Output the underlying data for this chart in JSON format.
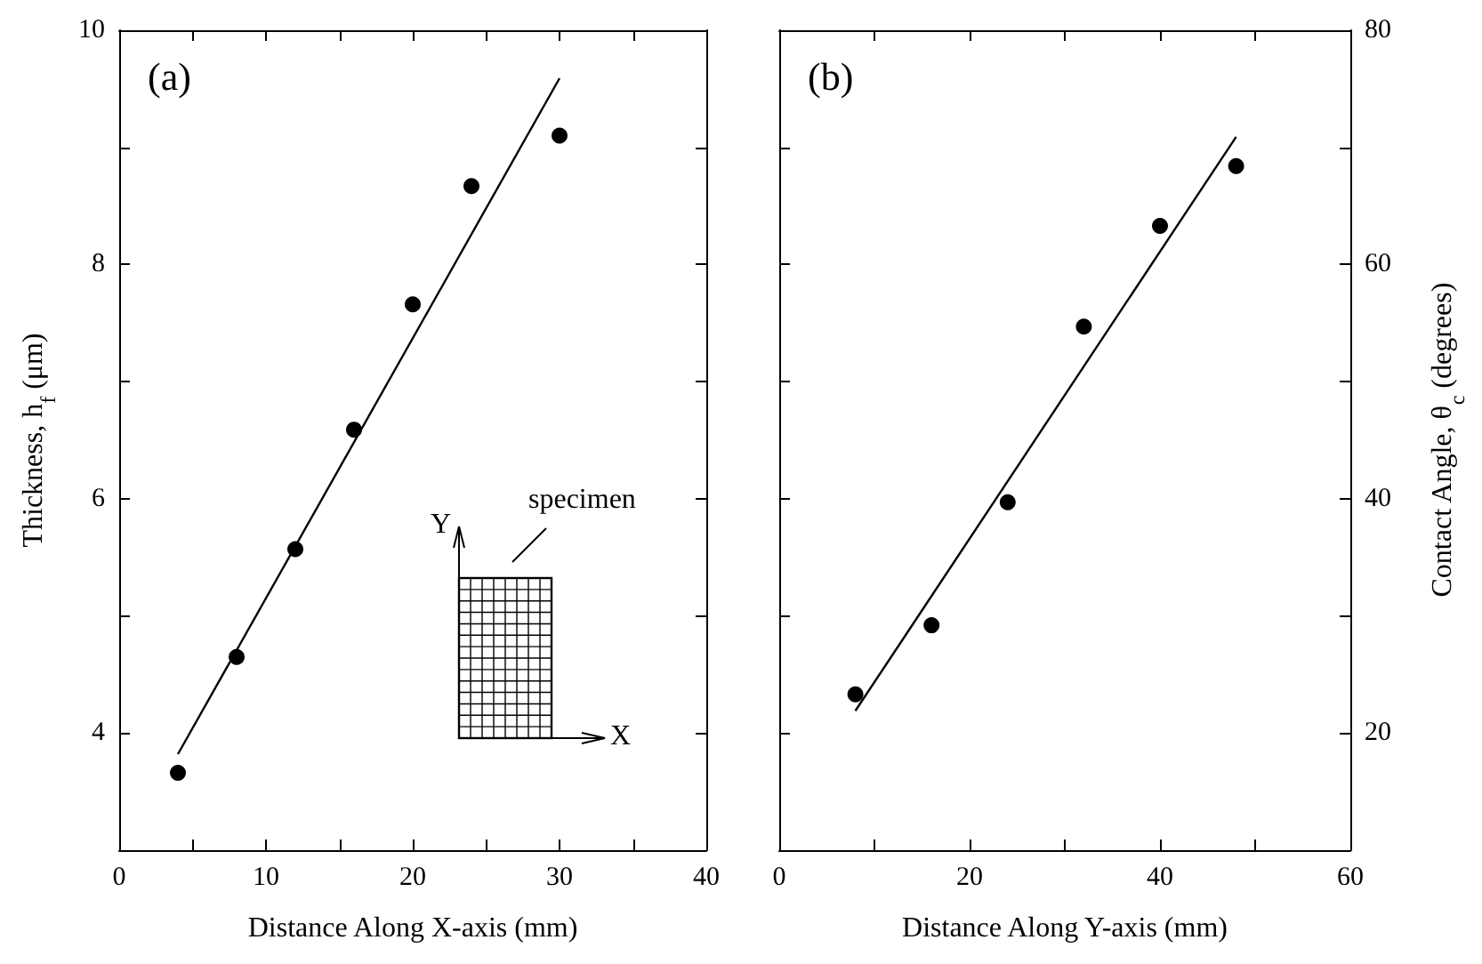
{
  "chart_data": [
    {
      "type": "scatter",
      "xlabel": "Distance Along X-axis (mm)",
      "ylabel": "Thickness, h$_{f}$ (μm)",
      "annotations": [
        "(a)",
        "specimen",
        "X",
        "Y"
      ],
      "xlim": [
        0,
        40
      ],
      "xticks": [
        0,
        10,
        20,
        30,
        40
      ],
      "ylim": [
        3,
        10
      ],
      "yticks": [
        4,
        6,
        8,
        10
      ],
      "series": [
        {
          "color": "#000000",
          "marker": "circle",
          "x": [
            4,
            8,
            12,
            16,
            20,
            24,
            30
          ],
          "values": [
            3.66,
            4.65,
            5.57,
            6.59,
            7.66,
            8.67,
            9.1
          ]
        },
        {
          "type": "line",
          "color": "#000000",
          "marker": "none",
          "line_style": "solid",
          "x": [
            4,
            30
          ],
          "values": [
            3.82,
            9.59
          ]
        }
      ]
    },
    {
      "type": "scatter",
      "xlabel": "Distance Along Y-axis (mm)",
      "ylabel": "Contact Angle, θ$_{c}$ (degrees)",
      "annotations": [
        "(b)"
      ],
      "xlim": [
        0,
        60
      ],
      "xticks": [
        0,
        20,
        40,
        60
      ],
      "ylim": [
        10,
        80
      ],
      "yticks": [
        20,
        40,
        60,
        80
      ],
      "series": [
        {
          "color": "#000000",
          "marker": "circle",
          "x": [
            8,
            16,
            24,
            32,
            40,
            48
          ],
          "values": [
            23.3,
            29.2,
            39.7,
            54.7,
            63.3,
            68.4
          ]
        },
        {
          "type": "line",
          "color": "#000000",
          "marker": "none",
          "line_style": "solid",
          "x": [
            8,
            48
          ],
          "values": [
            21.9,
            70.9
          ]
        }
      ]
    }
  ]
}
